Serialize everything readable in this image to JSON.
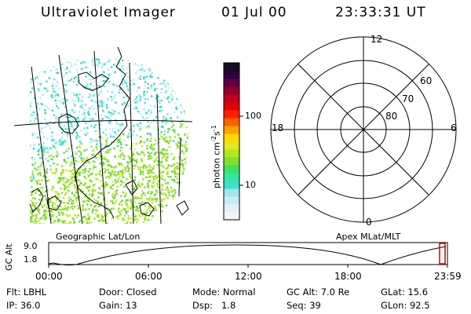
{
  "header": {
    "instrument": "Ultraviolet Imager",
    "date": "01 Jul 00",
    "time": "23:33:31 UT"
  },
  "left_panel": {
    "caption": "Geographic Lat/Lon"
  },
  "right_panel": {
    "caption": "Apex MLat/MLT",
    "mlt_labels": [
      "12",
      "18",
      "6",
      "0"
    ],
    "mlat_labels": [
      "60",
      "70",
      "80"
    ]
  },
  "colorbar": {
    "unit_label": "photon cm",
    "unit_sup1": "-2",
    "unit_mid": "s",
    "unit_sup2": "-1",
    "tick_labels": [
      "100",
      "10"
    ],
    "colors": [
      "#f4f4f4",
      "#e0f0f4",
      "#c8ecf4",
      "#a0e4ec",
      "#40e0d0",
      "#30e8a0",
      "#40e060",
      "#80e030",
      "#b0e820",
      "#e0e820",
      "#ffd800",
      "#ffa000",
      "#ff6000",
      "#ff2000",
      "#e00000",
      "#c00020",
      "#900030",
      "#600040",
      "#300040",
      "#101020"
    ]
  },
  "altitude_plot": {
    "ylabel": "GC Alt",
    "yticks": [
      "9.0",
      "1.8"
    ],
    "xticks": [
      "00:00",
      "06:00",
      "12:00",
      "18:00",
      "23:59"
    ]
  },
  "info": {
    "row1": [
      {
        "label": "Flt: LBHL"
      },
      {
        "label": "Door: Closed"
      },
      {
        "label": "Mode: Normal"
      },
      {
        "label": "GC Alt: 7.0 Re"
      },
      {
        "label": "GLat: 15.6"
      }
    ],
    "row2": [
      {
        "label": "IP: 36.0"
      },
      {
        "label": "Gain: 13"
      },
      {
        "label": "Dsp:   1.8"
      },
      {
        "label": "Seq: 39"
      },
      {
        "label": "GLon: 92.5"
      }
    ]
  }
}
